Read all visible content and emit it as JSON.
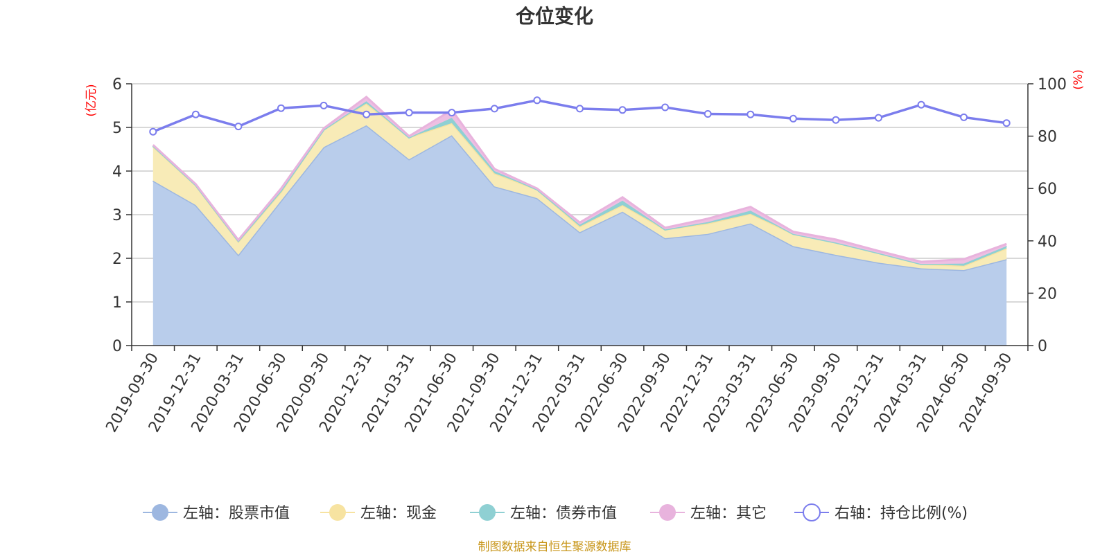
{
  "chart_data": {
    "type": "area",
    "title": "仓位变化",
    "left_axis_label": "(亿元)",
    "right_axis_label": "(%)",
    "left_ylim": [
      0,
      6
    ],
    "left_ticks": [
      0,
      1,
      2,
      3,
      4,
      5,
      6
    ],
    "right_ylim": [
      0,
      100
    ],
    "right_ticks": [
      0,
      20,
      40,
      60,
      80,
      100
    ],
    "categories": [
      "2019-09-30",
      "2019-12-31",
      "2020-03-31",
      "2020-06-30",
      "2020-09-30",
      "2020-12-31",
      "2021-03-31",
      "2021-06-30",
      "2021-09-30",
      "2021-12-31",
      "2022-03-31",
      "2022-06-30",
      "2022-09-30",
      "2022-12-31",
      "2023-03-31",
      "2023-06-30",
      "2023-09-30",
      "2023-12-31",
      "2024-03-31",
      "2024-06-30",
      "2024-09-30"
    ],
    "stacked_series": [
      {
        "name": "左轴：股票市值",
        "axis": "left",
        "color": "#9db7e0",
        "fill": "#b9cdeb",
        "values": [
          3.78,
          3.22,
          2.08,
          3.32,
          4.55,
          5.05,
          4.27,
          4.82,
          3.65,
          3.38,
          2.6,
          3.07,
          2.46,
          2.56,
          2.8,
          2.28,
          2.08,
          1.9,
          1.77,
          1.73,
          1.98
        ]
      },
      {
        "name": "左轴：现金",
        "axis": "left",
        "color": "#f7e3a1",
        "fill": "#f8ebb7",
        "values": [
          0.78,
          0.45,
          0.3,
          0.2,
          0.4,
          0.5,
          0.5,
          0.28,
          0.3,
          0.2,
          0.13,
          0.15,
          0.2,
          0.24,
          0.22,
          0.28,
          0.28,
          0.22,
          0.1,
          0.1,
          0.25
        ]
      },
      {
        "name": "左轴：债券市值",
        "axis": "left",
        "color": "#8fd0d3",
        "fill": "#8fd0d3",
        "values": [
          0.02,
          0.01,
          0.02,
          0.03,
          0.0,
          0.05,
          0.0,
          0.12,
          0.05,
          0.0,
          0.04,
          0.1,
          0.0,
          0.03,
          0.07,
          0.0,
          0.0,
          0.0,
          0.0,
          0.05,
          0.05
        ]
      },
      {
        "name": "左轴：其它",
        "axis": "left",
        "color": "#e8b3dd",
        "fill": "#eebfe2",
        "values": [
          0.02,
          0.02,
          0.02,
          0.05,
          0.03,
          0.1,
          0.03,
          0.18,
          0.05,
          0.02,
          0.05,
          0.08,
          0.04,
          0.08,
          0.09,
          0.05,
          0.07,
          0.05,
          0.05,
          0.1,
          0.05
        ]
      }
    ],
    "line_series": {
      "name": "右轴：持仓比例(%)",
      "axis": "right",
      "color": "#7b7ded",
      "values": [
        81.7,
        88.3,
        83.7,
        90.7,
        91.7,
        88.3,
        89.0,
        89.0,
        90.5,
        93.7,
        90.5,
        90.0,
        91.0,
        88.5,
        88.3,
        86.7,
        86.2,
        87.0,
        92.0,
        87.2,
        85.0
      ]
    },
    "legend_position": "bottom",
    "grid": true
  },
  "footer": {
    "source_text": "制图数据来自恒生聚源数据库"
  }
}
